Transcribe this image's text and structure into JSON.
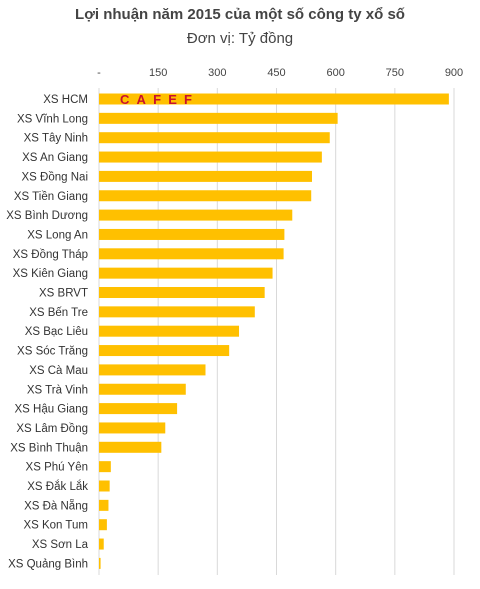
{
  "chart_data": {
    "type": "bar",
    "orientation": "horizontal",
    "title": "Lợi nhuận năm 2015 của một số công ty xổ số",
    "subtitle": "Đơn vị: Tỷ đồng",
    "xlim": [
      0,
      900
    ],
    "ticks": [
      {
        "value": 0,
        "label": "-"
      },
      {
        "value": 150,
        "label": "150"
      },
      {
        "value": 300,
        "label": "300"
      },
      {
        "value": 450,
        "label": "450"
      },
      {
        "value": 600,
        "label": "600"
      },
      {
        "value": 750,
        "label": "750"
      },
      {
        "value": 900,
        "label": "900"
      }
    ],
    "categories": [
      "XS HCM",
      "XS Vĩnh Long",
      "XS Tây Ninh",
      "XS An Giang",
      "XS Đồng Nai",
      "XS Tiền Giang",
      "XS Bình Dương",
      "XS Long An",
      "XS Đồng Tháp",
      "XS Kiên Giang",
      "XS BRVT",
      "XS Bến Tre",
      "XS Bạc Liêu",
      "XS Sóc Trăng",
      "XS Cà Mau",
      "XS Trà Vinh",
      "XS Hậu Giang",
      "XS Lâm Đồng",
      "XS Bình Thuận",
      "XS Phú Yên",
      "XS Đắk Lắk",
      "XS Đà Nẵng",
      "XS Kon Tum",
      "XS Sơn La",
      "XS Quảng Bình"
    ],
    "values": [
      887,
      605,
      585,
      565,
      540,
      538,
      490,
      470,
      468,
      440,
      420,
      395,
      355,
      330,
      270,
      220,
      198,
      168,
      158,
      30,
      27,
      24,
      20,
      12,
      4
    ],
    "bar_color": "#FFC000",
    "grid": true,
    "legend": "none"
  },
  "watermark": "CAFEF"
}
